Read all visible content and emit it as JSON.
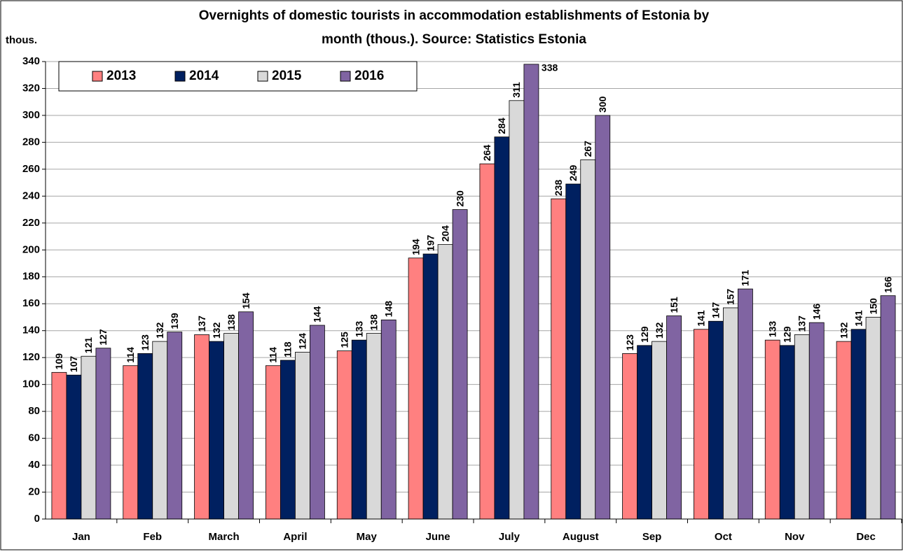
{
  "chart_data": {
    "type": "bar",
    "title": [
      "Overnights of domestic tourists in accommodation establishments of Estonia by",
      "month (thous.). Source: Statistics Estonia"
    ],
    "y_label": "thous.",
    "categories": [
      "Jan",
      "Feb",
      "March",
      "April",
      "May",
      "June",
      "July",
      "August",
      "Sep",
      "Oct",
      "Nov",
      "Dec"
    ],
    "series": [
      {
        "name": "2013",
        "color": "#ff8080",
        "values": [
          109,
          114,
          137,
          114,
          125,
          194,
          264,
          238,
          123,
          141,
          133,
          132
        ]
      },
      {
        "name": "2014",
        "color": "#002060",
        "values": [
          107,
          123,
          132,
          118,
          133,
          197,
          284,
          249,
          129,
          147,
          129,
          141
        ]
      },
      {
        "name": "2015",
        "color": "#d9d9d9",
        "values": [
          121,
          132,
          138,
          124,
          138,
          204,
          311,
          267,
          132,
          157,
          137,
          150
        ]
      },
      {
        "name": "2016",
        "color": "#8064a2",
        "values": [
          127,
          139,
          154,
          144,
          148,
          230,
          338,
          300,
          151,
          171,
          146,
          166
        ]
      }
    ],
    "ylim": [
      0,
      340
    ],
    "yticks": [
      0,
      20,
      40,
      60,
      80,
      100,
      120,
      140,
      160,
      180,
      200,
      220,
      240,
      260,
      280,
      300,
      320,
      340
    ],
    "grid": true,
    "legend": "top-left"
  }
}
